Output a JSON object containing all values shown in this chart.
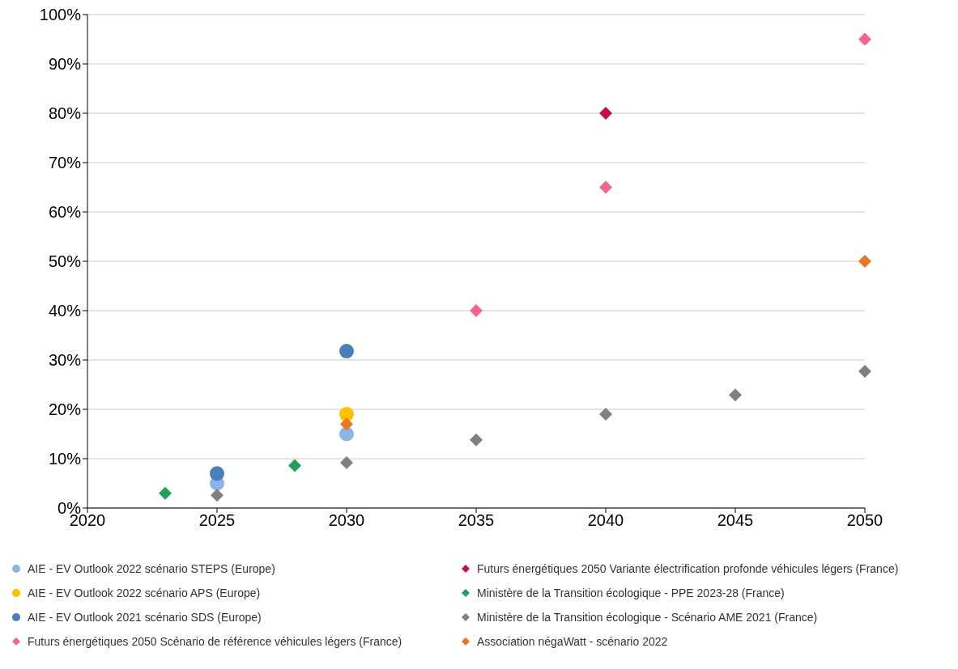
{
  "chart_data": {
    "type": "scatter",
    "xlim": [
      2020,
      2050
    ],
    "xticks": [
      2020,
      2025,
      2030,
      2035,
      2040,
      2045,
      2050
    ],
    "ylim": [
      0,
      100
    ],
    "yticks": [
      {
        "value": 0,
        "label": "0%"
      },
      {
        "value": 10,
        "label": "10%"
      },
      {
        "value": 20,
        "label": "20%"
      },
      {
        "value": 30,
        "label": "30%"
      },
      {
        "value": 40,
        "label": "40%"
      },
      {
        "value": 50,
        "label": "50%"
      },
      {
        "value": 60,
        "label": "60%"
      },
      {
        "value": 70,
        "label": "70%"
      },
      {
        "value": 80,
        "label": "80%"
      },
      {
        "value": 90,
        "label": "90%"
      },
      {
        "value": 100,
        "label": "100%"
      }
    ],
    "grid": "y",
    "legend": "bottom",
    "series": [
      {
        "name": "AIE - EV Outlook 2022 scénario STEPS  (Europe)",
        "color": "#8db4e2",
        "marker": "circle",
        "x": [
          2025,
          2030
        ],
        "values": [
          5,
          15
        ]
      },
      {
        "name": "AIE - EV Outlook 2022 scénario APS (Europe)",
        "color": "#ffc000",
        "marker": "circle",
        "x": [
          2030
        ],
        "values": [
          19
        ]
      },
      {
        "name": "AIE - EV Outlook 2021 scénario SDS (Europe)",
        "color": "#4a7ebb",
        "marker": "circle",
        "x": [
          2025,
          2030
        ],
        "values": [
          7,
          31.8
        ]
      },
      {
        "name": "Futurs énergétiques 2050 Scénario de référence véhicules légers (France)",
        "color": "#f5648c",
        "marker": "diamond",
        "x": [
          2035,
          2040,
          2050
        ],
        "values": [
          40,
          65,
          95
        ]
      },
      {
        "name": "Futurs énergétiques 2050 Variante électrification profonde véhicules légers (France)",
        "color": "#c0104a",
        "marker": "diamond",
        "x": [
          2040
        ],
        "values": [
          80
        ]
      },
      {
        "name": "Ministère de la Transition écologique - PPE 2023-28 (France)",
        "color": "#23a05a",
        "marker": "diamond",
        "x": [
          2023,
          2028
        ],
        "values": [
          3,
          8.6
        ]
      },
      {
        "name": "Ministère de la Transition écologique - Scénario AME 2021 (France)",
        "color": "#808080",
        "marker": "diamond",
        "x": [
          2025,
          2030,
          2035,
          2040,
          2045,
          2050
        ],
        "values": [
          2.6,
          9.2,
          13.8,
          19,
          22.9,
          27.7
        ]
      },
      {
        "name": "Association négaWatt - scénario 2022",
        "color": "#e87722",
        "marker": "diamond",
        "x": [
          2030,
          2050
        ],
        "values": [
          17,
          50
        ]
      }
    ]
  }
}
